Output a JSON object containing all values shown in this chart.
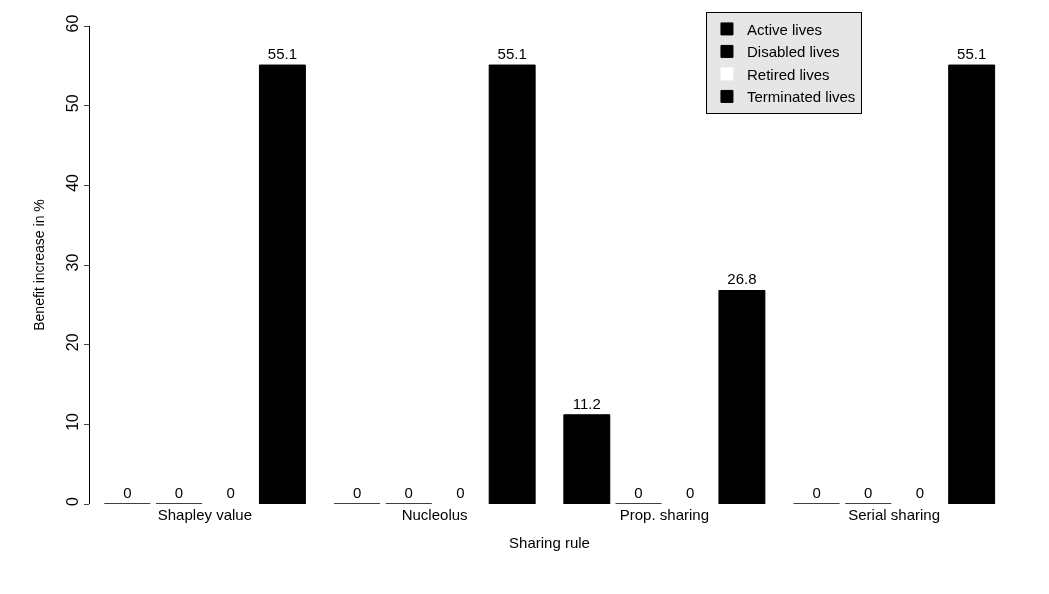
{
  "chart_data": {
    "type": "bar",
    "xlabel": "Sharing rule",
    "ylabel": "Benefit increase in %",
    "categories": [
      "Shapley value",
      "Nucleolus",
      "Prop. sharing",
      "Serial sharing"
    ],
    "series": [
      {
        "name": "Active lives",
        "color": "#000000",
        "values": [
          0,
          0,
          11.2,
          0
        ]
      },
      {
        "name": "Disabled lives",
        "color": "#000000",
        "values": [
          0,
          0,
          0,
          0
        ]
      },
      {
        "name": "Retired lives",
        "color": "#ffffff",
        "values": [
          0,
          0,
          0,
          0
        ]
      },
      {
        "name": "Terminated lives",
        "color": "#000000",
        "values": [
          55.1,
          55.1,
          26.8,
          55.1
        ]
      }
    ],
    "ylim": [
      0,
      60
    ],
    "yticks": [
      0,
      10,
      20,
      30,
      40,
      50,
      60
    ],
    "data_labels": true,
    "legend": "top right"
  }
}
